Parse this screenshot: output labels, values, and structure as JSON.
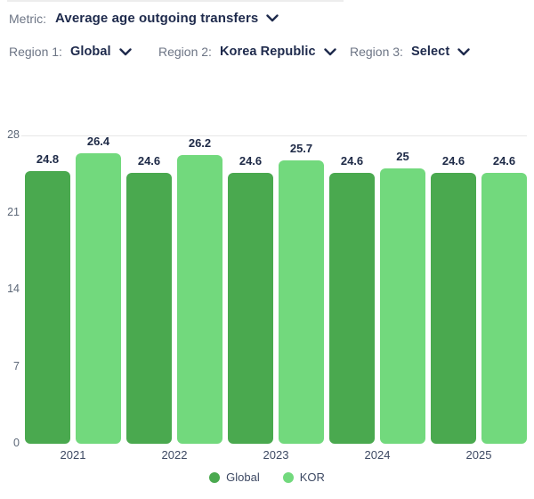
{
  "header": {
    "metric_label": "Metric:",
    "metric_value": "Average age outgoing transfers",
    "regions": [
      {
        "label": "Region 1:",
        "value": "Global"
      },
      {
        "label": "Region 2:",
        "value": "Korea Republic"
      },
      {
        "label": "Region 3:",
        "value": "Select"
      }
    ]
  },
  "chart_data": {
    "type": "bar",
    "title": "",
    "categories": [
      "2021",
      "2022",
      "2023",
      "2024",
      "2025"
    ],
    "series": [
      {
        "name": "Global",
        "color": "#4aa94f",
        "values": [
          24.8,
          24.6,
          24.6,
          24.6,
          24.6
        ]
      },
      {
        "name": "KOR",
        "color": "#72d97d",
        "values": [
          26.4,
          26.2,
          25.7,
          25,
          24.6
        ]
      }
    ],
    "ylim": [
      0,
      28
    ],
    "yticks": [
      0,
      7,
      14,
      21,
      28
    ],
    "gridlines": [
      28
    ],
    "value_labels": true,
    "legend_position": "bottom-center",
    "colors": {
      "grid": "#e7e7e7",
      "value_label": "#1d2946",
      "axis_text": "#5d6878"
    }
  }
}
